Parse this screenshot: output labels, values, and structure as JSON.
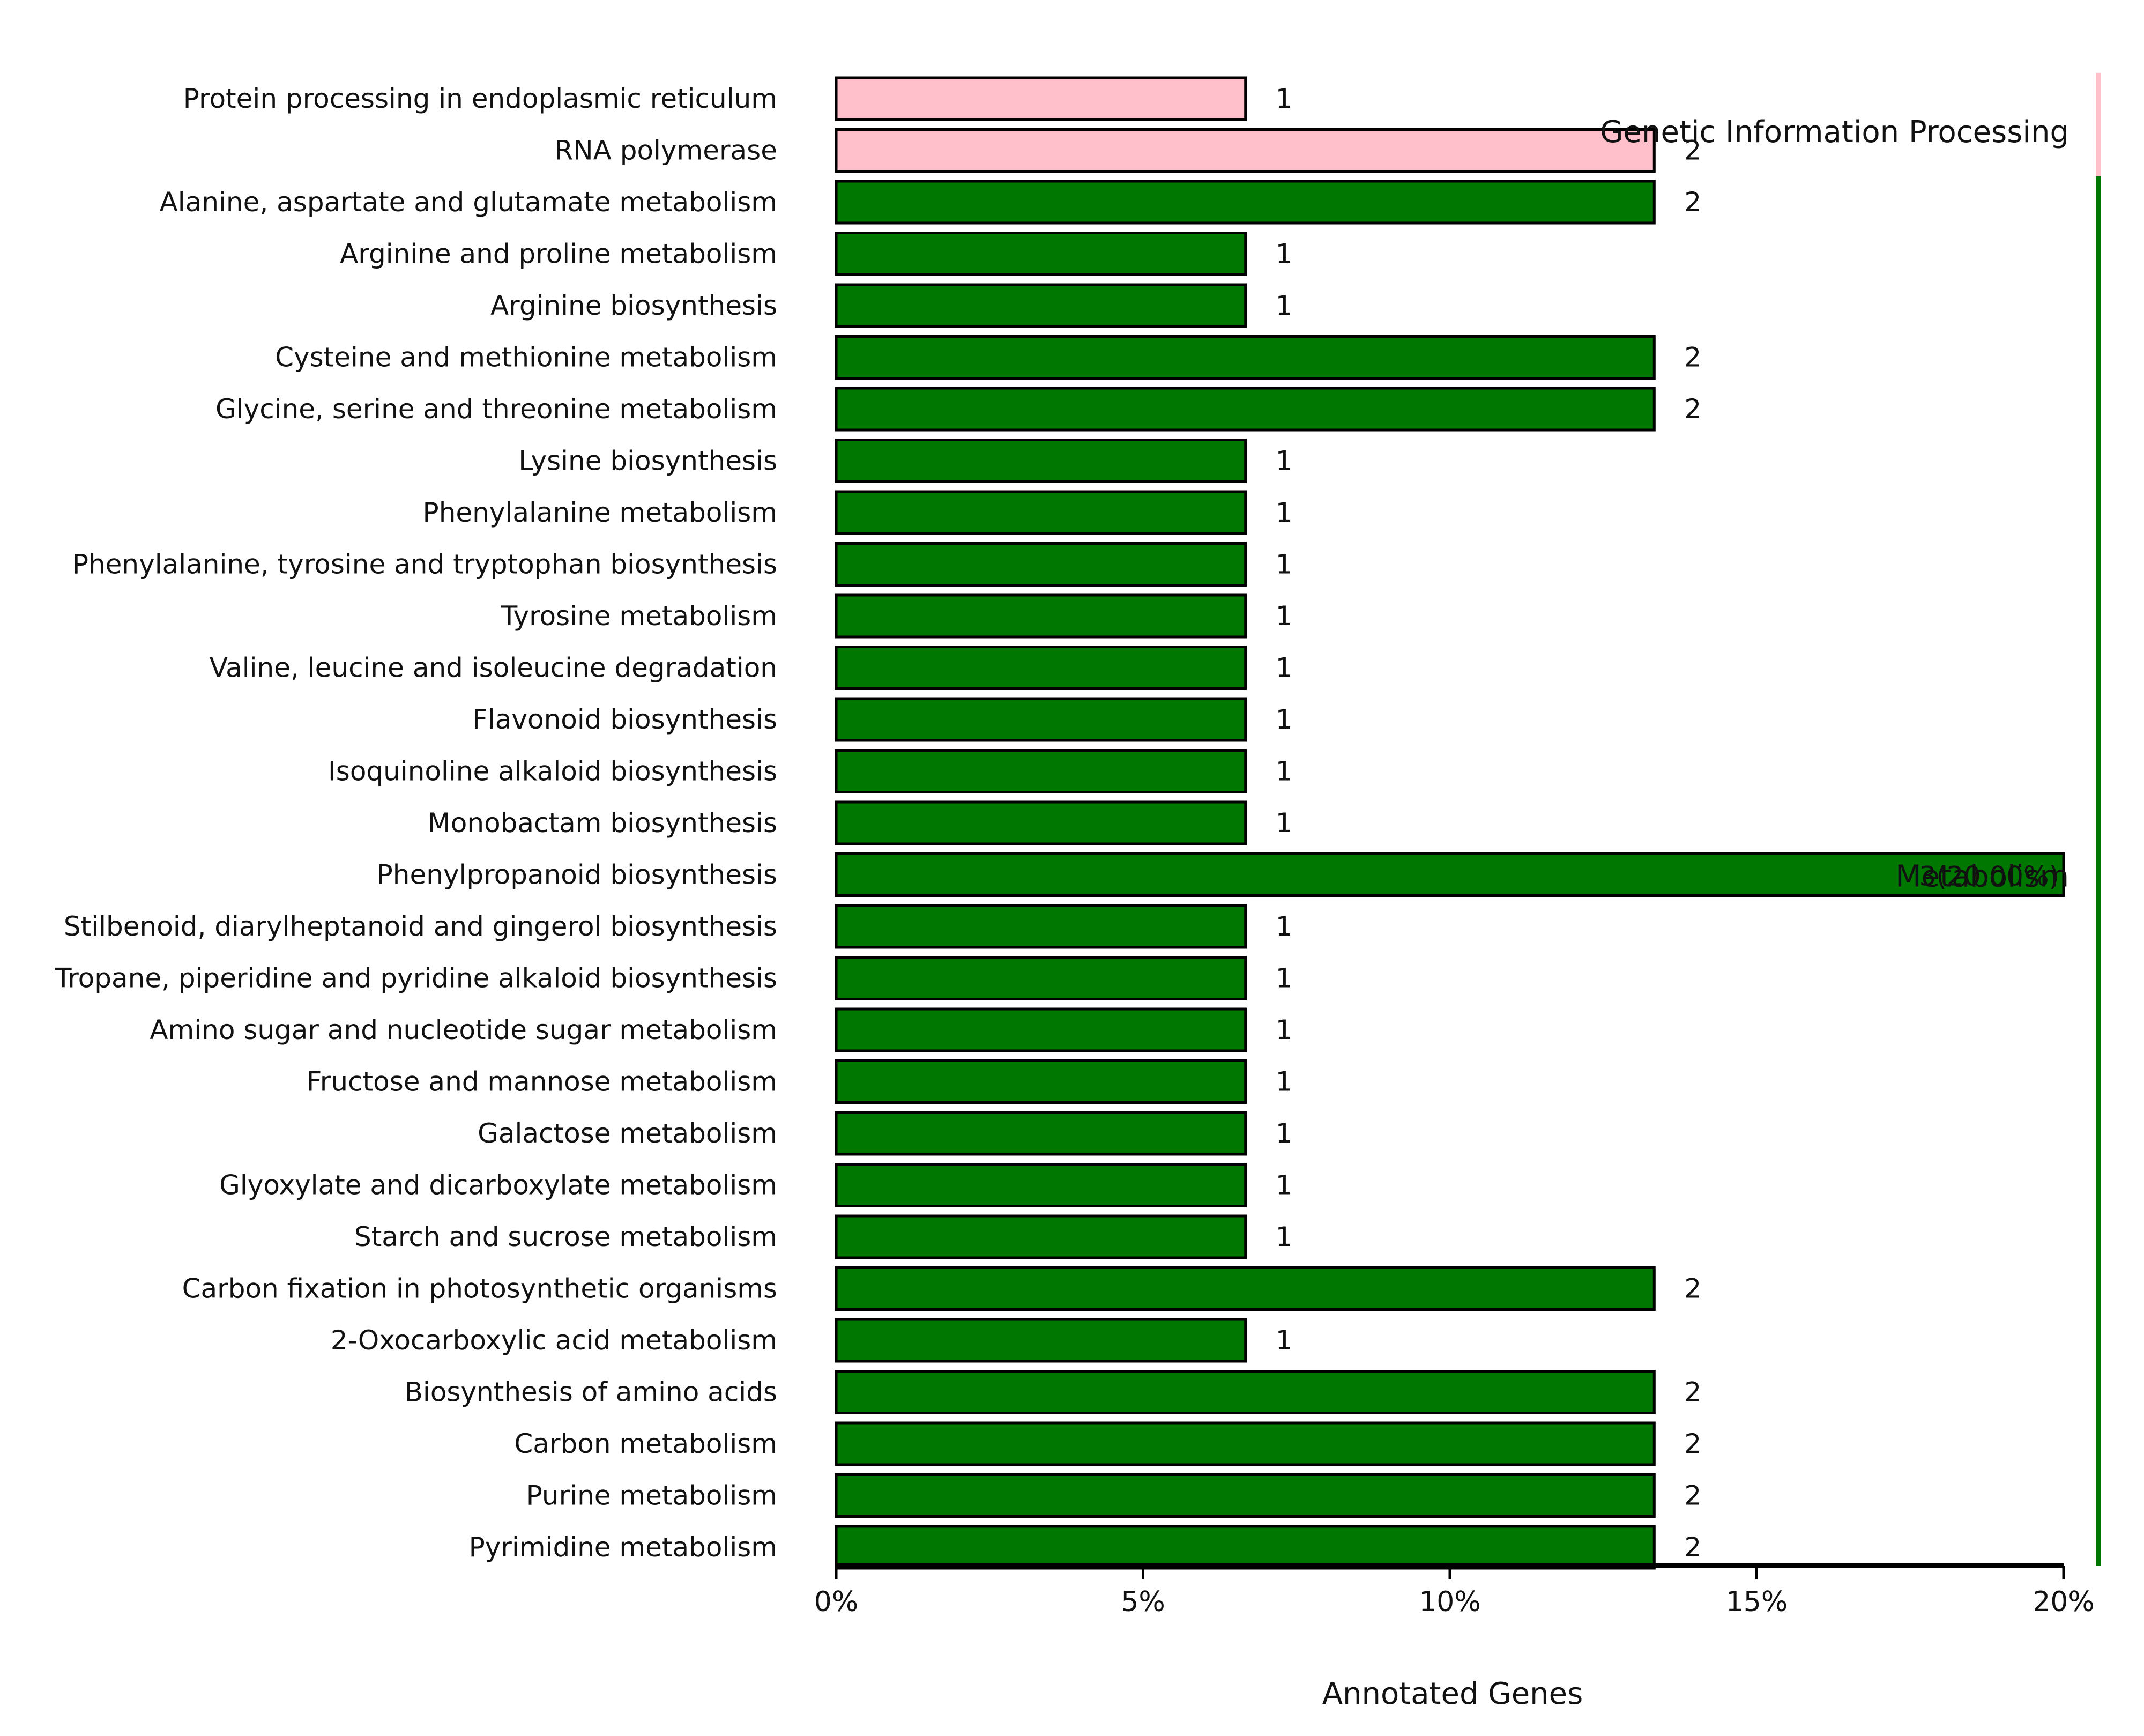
{
  "chart_data": {
    "type": "bar",
    "orientation": "horizontal",
    "title": "",
    "xlabel": "Annotated Genes",
    "ylabel": "",
    "xlim": [
      0,
      20
    ],
    "x_ticks": [
      "0%",
      "5%",
      "10%",
      "15%",
      "20%"
    ],
    "grid": false,
    "categories": [
      "Protein processing in endoplasmic reticulum",
      "RNA polymerase",
      "Alanine, aspartate and glutamate metabolism",
      "Arginine and proline metabolism",
      "Arginine biosynthesis",
      "Cysteine and methionine metabolism",
      "Glycine, serine and threonine metabolism",
      "Lysine biosynthesis",
      "Phenylalanine metabolism",
      "Phenylalanine, tyrosine and tryptophan biosynthesis",
      "Tyrosine metabolism",
      "Valine, leucine and isoleucine degradation",
      "Flavonoid biosynthesis",
      "Isoquinoline alkaloid biosynthesis",
      "Monobactam biosynthesis",
      "Phenylpropanoid biosynthesis",
      "Stilbenoid, diarylheptanoid and gingerol biosynthesis",
      "Tropane, piperidine and pyridine alkaloid biosynthesis",
      "Amino sugar and nucleotide sugar metabolism",
      "Fructose and mannose metabolism",
      "Galactose metabolism",
      "Glyoxylate and dicarboxylate metabolism",
      "Starch and sucrose metabolism",
      "Carbon fixation in photosynthetic organisms",
      "2-Oxocarboxylic acid metabolism",
      "Biosynthesis of amino acids",
      "Carbon metabolism",
      "Purine metabolism",
      "Pyrimidine metabolism"
    ],
    "values": [
      6.67,
      13.33,
      13.33,
      6.67,
      6.67,
      13.33,
      13.33,
      6.67,
      6.67,
      6.67,
      6.67,
      6.67,
      6.67,
      6.67,
      6.67,
      20.0,
      6.67,
      6.67,
      6.67,
      6.67,
      6.67,
      6.67,
      6.67,
      13.33,
      6.67,
      13.33,
      13.33,
      13.33,
      13.33
    ],
    "value_labels": [
      "1",
      "2",
      "2",
      "1",
      "1",
      "2",
      "2",
      "1",
      "1",
      "1",
      "1",
      "1",
      "1",
      "1",
      "1",
      "3",
      "1",
      "1",
      "1",
      "1",
      "1",
      "1",
      "1",
      "2",
      "1",
      "2",
      "2",
      "2",
      "2"
    ],
    "groups": [
      {
        "name": "Genetic Information Processing",
        "start": 0,
        "end": 1,
        "color": "#ffc0cb"
      },
      {
        "name": "Metabolism",
        "start": 2,
        "end": 28,
        "color": "#007700"
      }
    ],
    "overlap_label_text": "3(20.00%)"
  }
}
